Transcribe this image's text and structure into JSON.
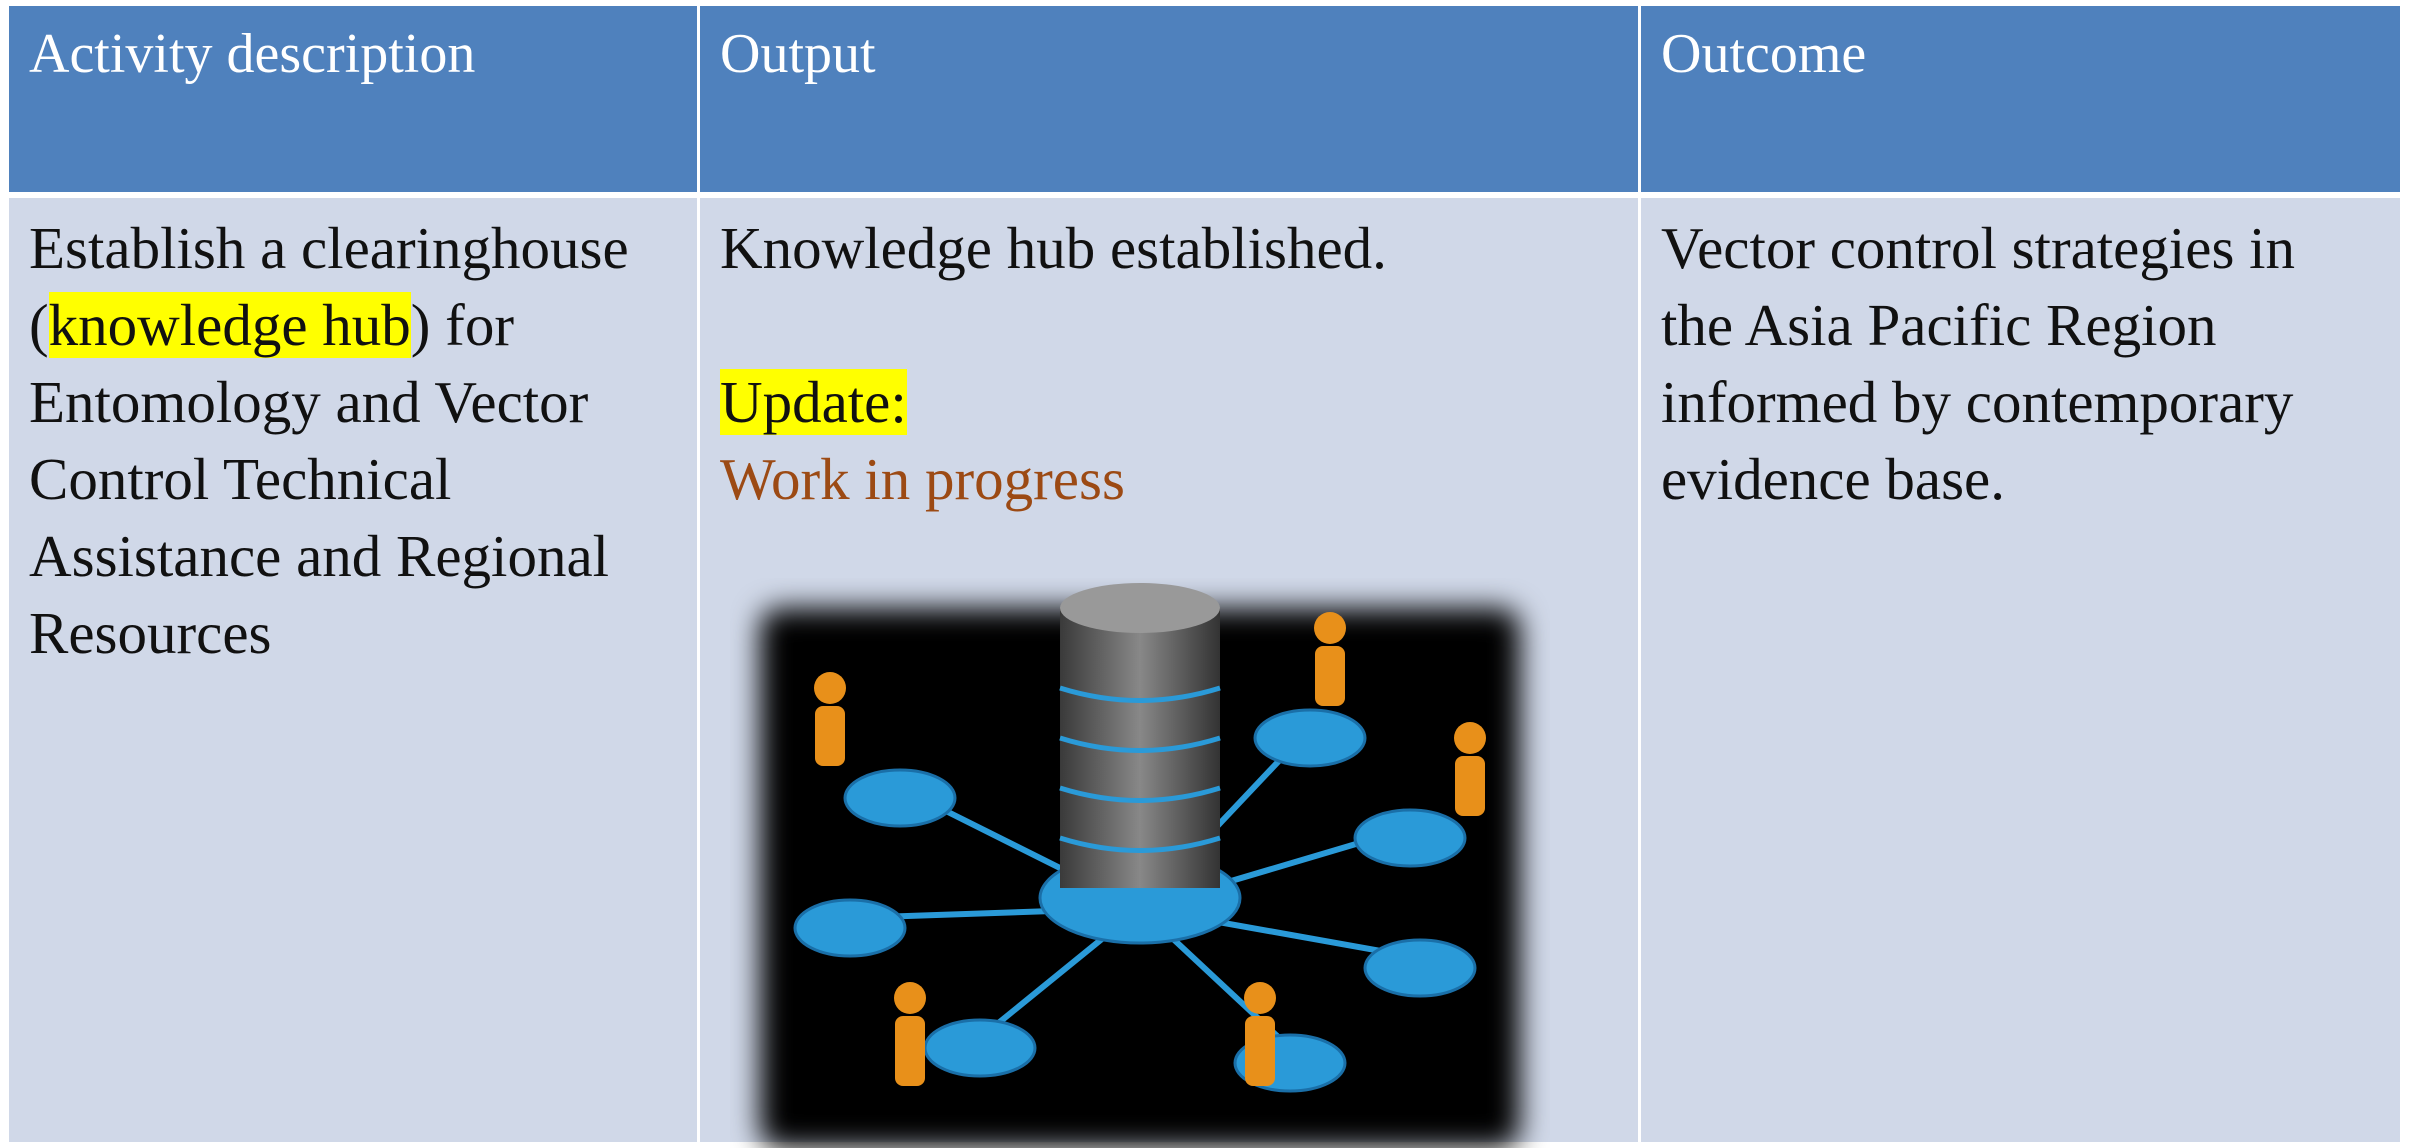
{
  "table": {
    "headers": [
      "Activity description",
      "Output",
      "Outcome"
    ],
    "rows": [
      {
        "activity": {
          "before": "Establish a clearinghouse (",
          "highlight": "knowledge hub",
          "after": ") for Entomology and Vector Control Technical Assistance and Regional Resources"
        },
        "output": {
          "text": "Knowledge hub established.",
          "update_label": "Update:",
          "update_text": "Work in progress"
        },
        "outcome": "Vector control strategies in the Asia Pacific Region informed by contemporary evidence base."
      }
    ]
  }
}
